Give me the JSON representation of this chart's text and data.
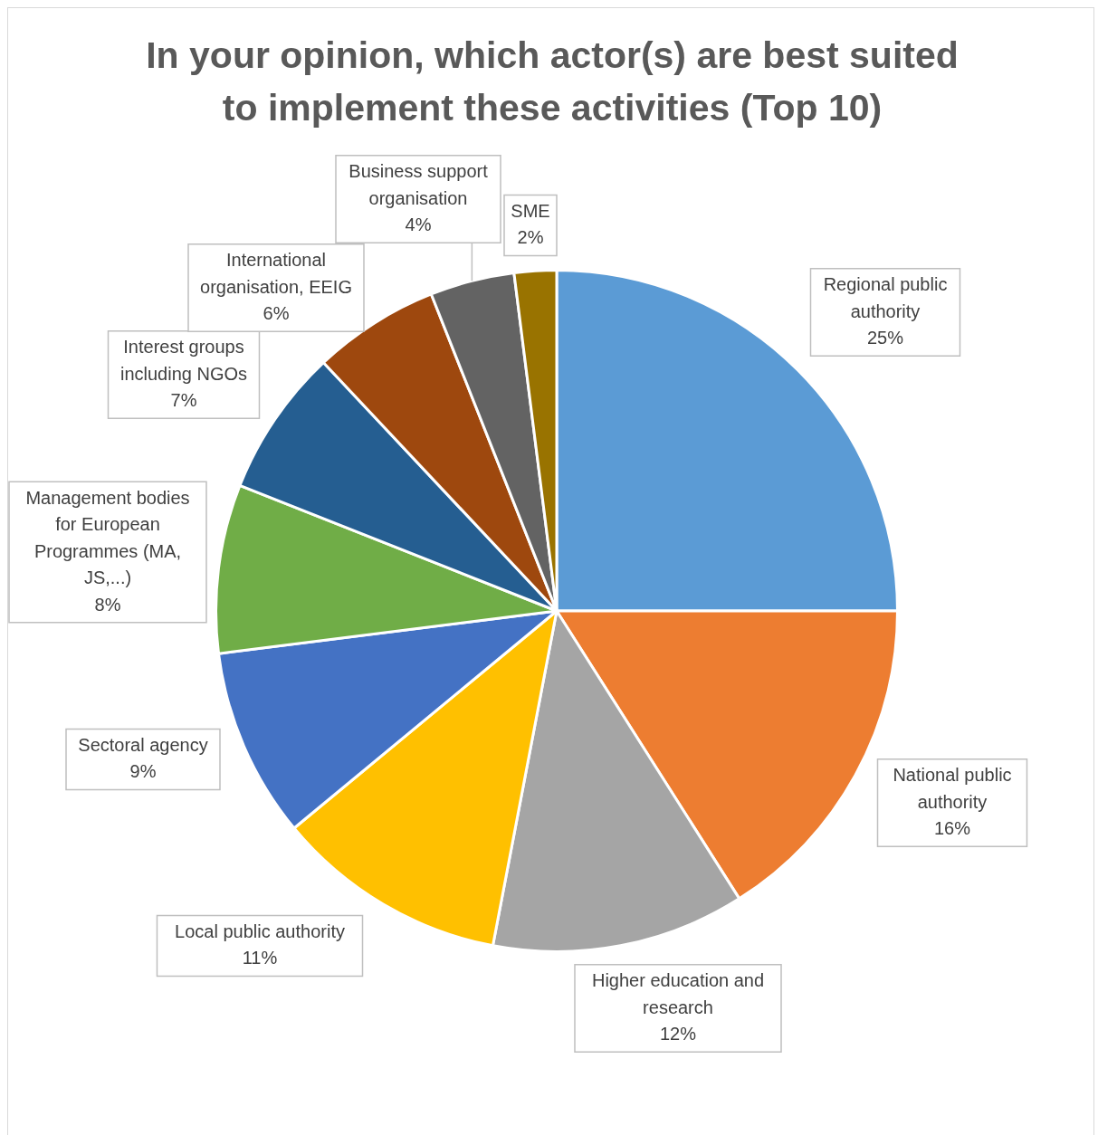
{
  "chart_data": {
    "type": "pie",
    "title": "In your opinion, which actor(s) are best suited to implement these activities (Top 10)",
    "categories": [
      "Regional public authority",
      "National public authority",
      "Higher education and research",
      "Local public authority",
      "Sectoral agency",
      "Management bodies for European Programmes (MA, JS,...)",
      "Interest groups including NGOs",
      "International organisation, EEIG",
      "Business support organisation",
      "SME"
    ],
    "values": [
      25,
      16,
      12,
      11,
      9,
      8,
      7,
      6,
      4,
      2
    ],
    "colors": [
      "#5b9bd5",
      "#ed7d31",
      "#a5a5a5",
      "#ffc000",
      "#4472c4",
      "#70ad47",
      "#255e91",
      "#9e480e",
      "#636363",
      "#997300"
    ],
    "value_labels": [
      "25%",
      "16%",
      "12%",
      "11%",
      "9%",
      "8%",
      "7%",
      "6%",
      "4%",
      "2%"
    ]
  }
}
